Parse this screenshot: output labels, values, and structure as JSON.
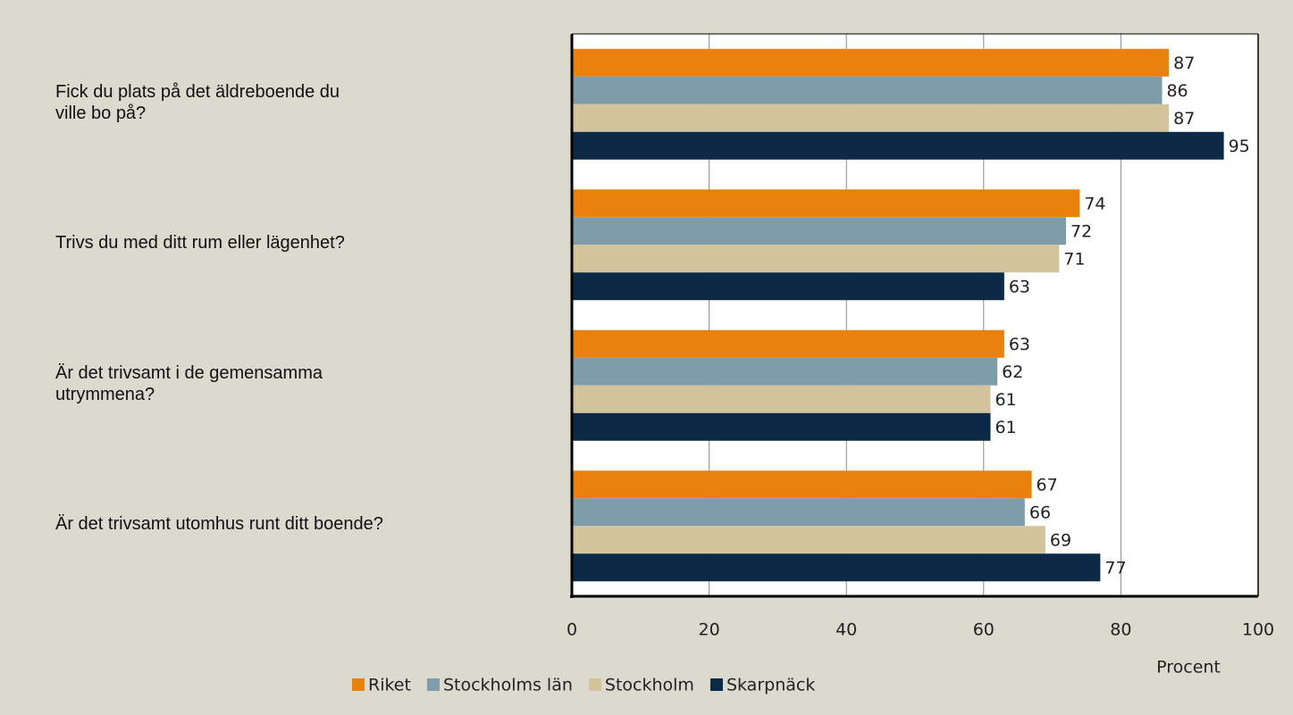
{
  "chart_data": {
    "type": "bar",
    "orientation": "horizontal",
    "categories": [
      "Fick du plats på det äldreboende du\nville bo på?",
      "Trivs du med ditt rum eller lägenhet?",
      "Är det trivsamt i de gemensamma\nutrymmena?",
      "Är det trivsamt utomhus runt ditt boende?"
    ],
    "series": [
      {
        "name": "Riket",
        "color": "#e8820c",
        "values": [
          87,
          74,
          63,
          67
        ]
      },
      {
        "name": "Stockholms län",
        "color": "#7f9cab",
        "values": [
          86,
          72,
          62,
          66
        ]
      },
      {
        "name": "Stockholm",
        "color": "#d4c49c",
        "values": [
          87,
          71,
          61,
          69
        ]
      },
      {
        "name": "Skarpnäck",
        "color": "#0c2a45",
        "values": [
          95,
          63,
          61,
          77
        ]
      }
    ],
    "xlabel": "Procent",
    "xlim": [
      0,
      100
    ],
    "xticks": [
      0,
      20,
      40,
      60,
      80,
      100
    ],
    "grid": true,
    "legend": "bottom"
  }
}
